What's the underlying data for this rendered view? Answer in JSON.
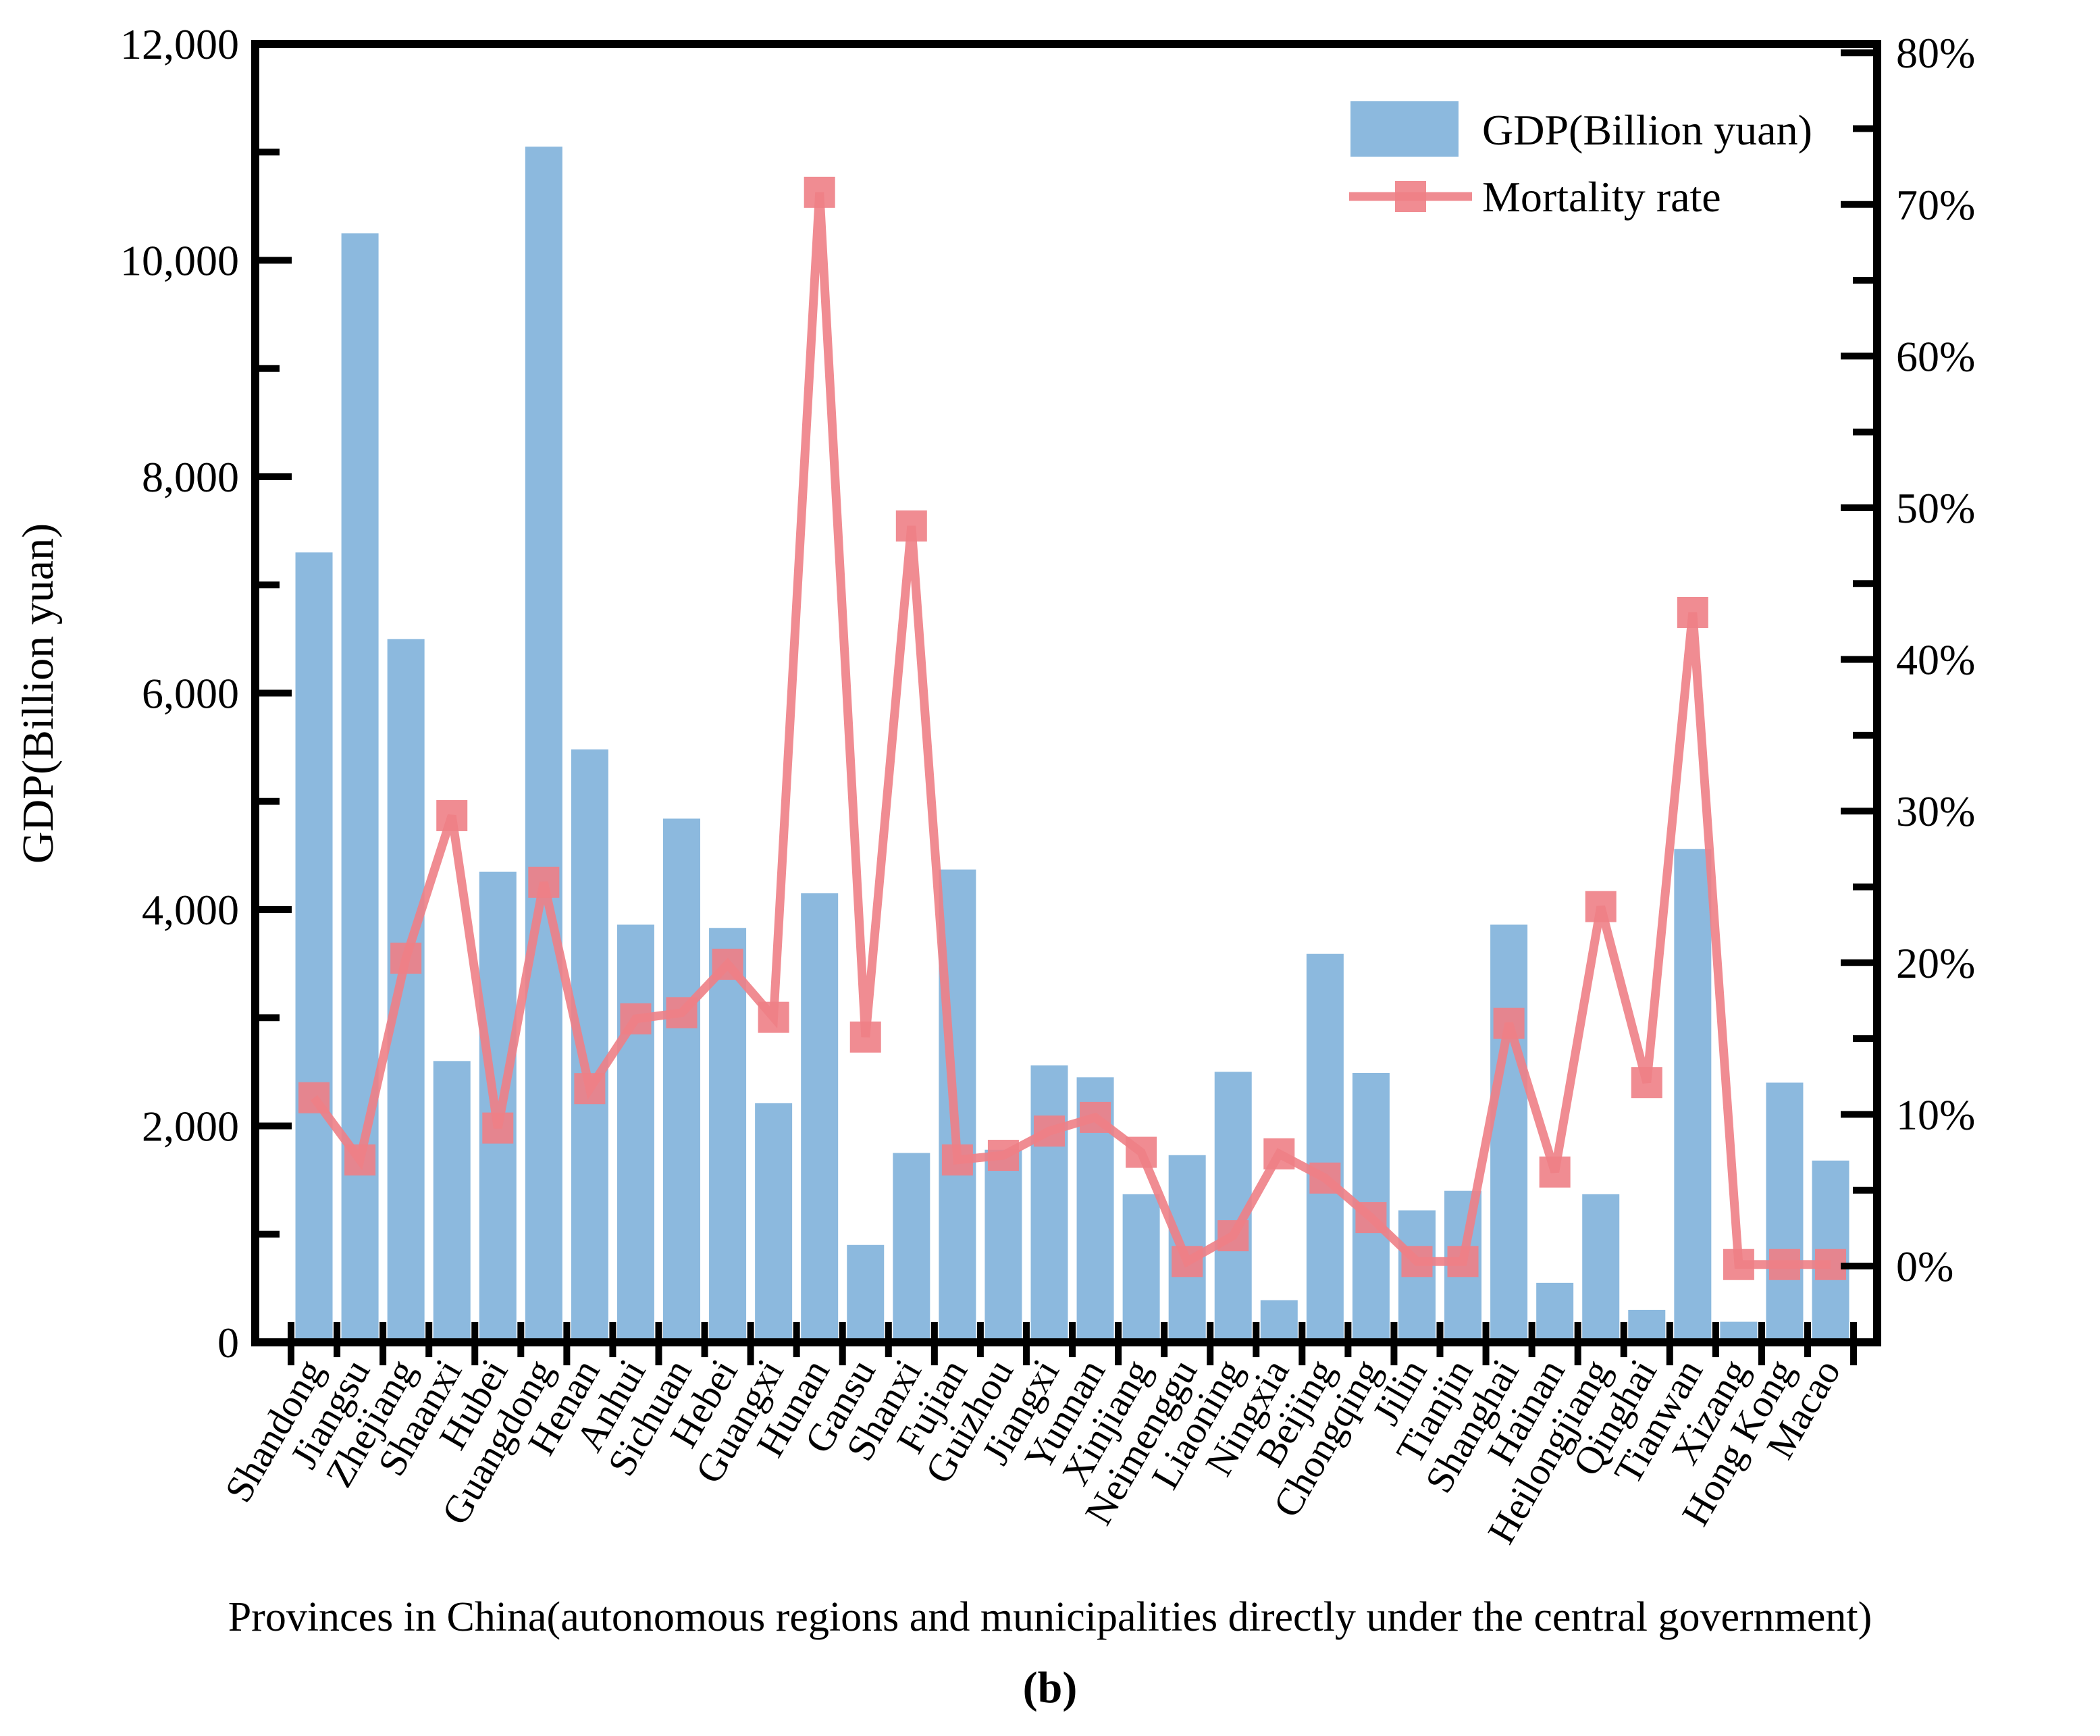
{
  "figure": {
    "caption": "Provinces in China(autonomous regions and municipalities directly under the central government)",
    "panel_label": "(b)"
  },
  "legend": {
    "gdp_label": "GDP(Billion yuan)",
    "mortality_label": "Mortality rate"
  },
  "colors": {
    "bar": "#8cb9de",
    "line": "#ee7f86",
    "axis": "#000000",
    "background": "#ffffff"
  },
  "chart_data": {
    "type": "bar+line",
    "title": "",
    "xlabel": "Provinces in China(autonomous regions and municipalities directly under the central government)",
    "categories": [
      "Shandong",
      "Jiangsu",
      "Zhejiang",
      "Shaanxi",
      "Hubei",
      "Guangdong",
      "Henan",
      "Anhui",
      "Sichuan",
      "Hebei",
      "Guangxi",
      "Hunan",
      "Gansu",
      "Shanxi",
      "Fujian",
      "Guizhou",
      "Jiangxi",
      "Yunnan",
      "Xinjiang",
      "Neimenggu",
      "Liaoning",
      "Ningxia",
      "Beijing",
      "Chongqing",
      "Jilin",
      "Tianjin",
      "Shanghai",
      "Hainan",
      "Heilongjiang",
      "Qinghai",
      "Tianwan",
      "Xizang",
      "Hong Kong",
      "Macao"
    ],
    "series": [
      {
        "name": "GDP(Billion yuan)",
        "type": "bar",
        "axis": "left",
        "values": [
          7300,
          10250,
          6500,
          2600,
          4350,
          11050,
          5480,
          3860,
          4840,
          3830,
          2210,
          4150,
          900,
          1750,
          4370,
          1780,
          2560,
          2450,
          1370,
          1730,
          2500,
          390,
          3590,
          2490,
          1220,
          1400,
          3860,
          550,
          1370,
          300,
          4560,
          190,
          2400,
          1680
        ]
      },
      {
        "name": "Mortality rate",
        "type": "line",
        "axis": "right",
        "values": [
          11.1,
          7.0,
          20.3,
          29.7,
          9.1,
          25.3,
          11.7,
          16.3,
          16.7,
          19.9,
          16.4,
          70.8,
          15.1,
          48.8,
          7.0,
          7.3,
          8.9,
          9.8,
          7.5,
          0.3,
          2.0,
          7.4,
          5.8,
          3.2,
          0.3,
          0.3,
          16.0,
          6.2,
          23.7,
          12.1,
          43.1,
          0.1,
          0.1,
          0.1
        ]
      }
    ],
    "left_axis": {
      "label": "GDP(Billion yuan)",
      "min": 0,
      "max": 12000,
      "major_step": 2000,
      "minor_step": 1000,
      "tick_labels": [
        "0",
        "2,000",
        "4,000",
        "6,000",
        "8,000",
        "10,000",
        "12,000"
      ]
    },
    "right_axis": {
      "label": "Mortality rate",
      "min": 0,
      "max": 80,
      "major_step": 10,
      "minor_step": 5,
      "unit": "%",
      "tick_labels": [
        "0%",
        "10%",
        "20%",
        "30%",
        "40%",
        "50%",
        "60%",
        "70%",
        "80%"
      ]
    },
    "grid": false,
    "legend_position": "top-right"
  }
}
